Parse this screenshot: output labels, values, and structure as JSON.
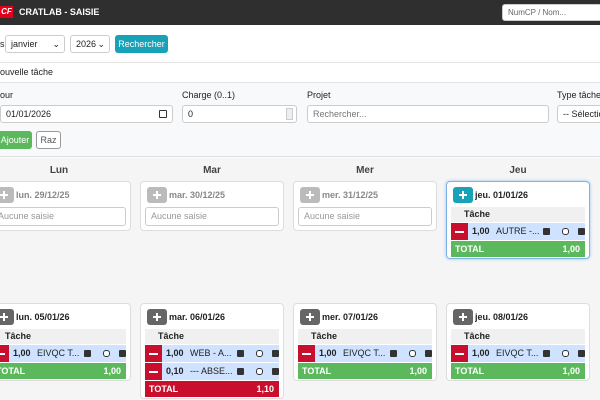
{
  "header": {
    "logo": "CF",
    "title": "CRATLAB - SAISIE",
    "search_placeholder": "NumCP / Nom..."
  },
  "filters": {
    "label": "s",
    "month": "janvier",
    "year": "2026",
    "button": "Rechercher"
  },
  "form": {
    "title": "ouvelle tâche",
    "fields": [
      {
        "label": "our",
        "value": "01/01/2026"
      },
      {
        "label": "Charge (0..1)",
        "value": "0"
      },
      {
        "label": "Projet",
        "placeholder": "Rechercher..."
      },
      {
        "label": "Type tâche",
        "value": "-- Sélection"
      }
    ],
    "add_button": "Ajouter",
    "reset_button": "Raz"
  },
  "day_headers": [
    "Lun",
    "Mar",
    "Mer",
    "Jeu"
  ],
  "table_header": "Tâche",
  "total_label": "TOTAL",
  "weeks": [
    {
      "days": [
        {
          "date": "lun. 29/12/25",
          "empty": "Aucune saisie"
        },
        {
          "date": "mar. 30/12/25",
          "empty": "Aucune saisie"
        },
        {
          "date": "mer. 31/12/25",
          "empty": "Aucune saisie"
        },
        {
          "date": "jeu. 01/01/26",
          "entries": [
            {
              "charge": "1,00",
              "task": "AUTRE -..."
            }
          ],
          "total": "1,00"
        }
      ]
    },
    {
      "days": [
        {
          "date": "lun. 05/01/26",
          "entries": [
            {
              "charge": "1,00",
              "task": "EIVQC T..."
            }
          ],
          "total": "1,00"
        },
        {
          "date": "mar. 06/01/26",
          "entries": [
            {
              "charge": "1,00",
              "task": "WEB - A..."
            },
            {
              "charge": "0,10",
              "task": "--- ABSE..."
            }
          ],
          "total": "1,10"
        },
        {
          "date": "mer. 07/01/26",
          "entries": [
            {
              "charge": "1,00",
              "task": "EIVQC T..."
            }
          ],
          "total": "1,00"
        },
        {
          "date": "jeu. 08/01/26",
          "entries": [
            {
              "charge": "1,00",
              "task": "EIVQC T..."
            }
          ],
          "total": "1,00"
        }
      ]
    }
  ]
}
